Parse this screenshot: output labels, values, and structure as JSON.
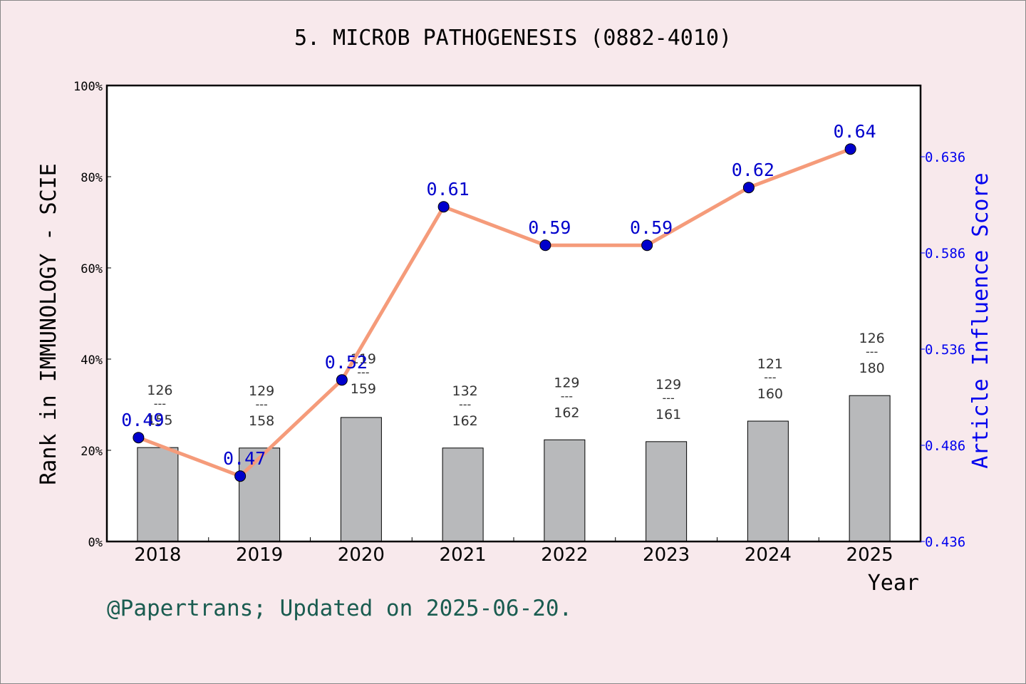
{
  "chart_data": {
    "type": "bar+line",
    "title": "5. MICROB PATHOGENESIS (0882-4010)",
    "xlabel": "Year",
    "ylabel_left": "Rank in IMMUNOLOGY - SCIE",
    "ylabel_right": "Article Influence Score",
    "categories": [
      "2018",
      "2019",
      "2020",
      "2021",
      "2022",
      "2023",
      "2024",
      "2025"
    ],
    "left_ticks": [
      "0%",
      "20%",
      "40%",
      "60%",
      "80%",
      "100%"
    ],
    "right_ticks": [
      "0.436",
      "0.486",
      "0.536",
      "0.586",
      "0.636"
    ],
    "ylim_left": [
      0,
      100
    ],
    "ylim_right": [
      0.436,
      0.636
    ],
    "series": [
      {
        "name": "Rank percentile",
        "type": "bar",
        "values": [
          20.6,
          20.5,
          27.2,
          20.5,
          22.3,
          21.9,
          26.4,
          32.0
        ]
      },
      {
        "name": "Article Influence Score",
        "type": "line",
        "values": [
          0.49,
          0.47,
          0.52,
          0.61,
          0.59,
          0.59,
          0.62,
          0.64
        ]
      }
    ],
    "rank_labels": [
      {
        "rank": "126",
        "total": "155"
      },
      {
        "rank": "129",
        "total": "158"
      },
      {
        "rank": "119",
        "total": "159"
      },
      {
        "rank": "132",
        "total": "162"
      },
      {
        "rank": "129",
        "total": "162"
      },
      {
        "rank": "129",
        "total": "161"
      },
      {
        "rank": "121",
        "total": "160"
      },
      {
        "rank": "126",
        "total": "180"
      }
    ],
    "point_labels": [
      "0.49",
      "0.47",
      "0.52",
      "0.61",
      "0.59",
      "0.59",
      "0.62",
      "0.64"
    ],
    "colors": {
      "bar": "#b8b9bb",
      "line": "#f59b7a",
      "marker": "#0000cc",
      "right_axis": "#0000ee"
    }
  },
  "footer": "@Papertrans; Updated on 2025-06-20."
}
